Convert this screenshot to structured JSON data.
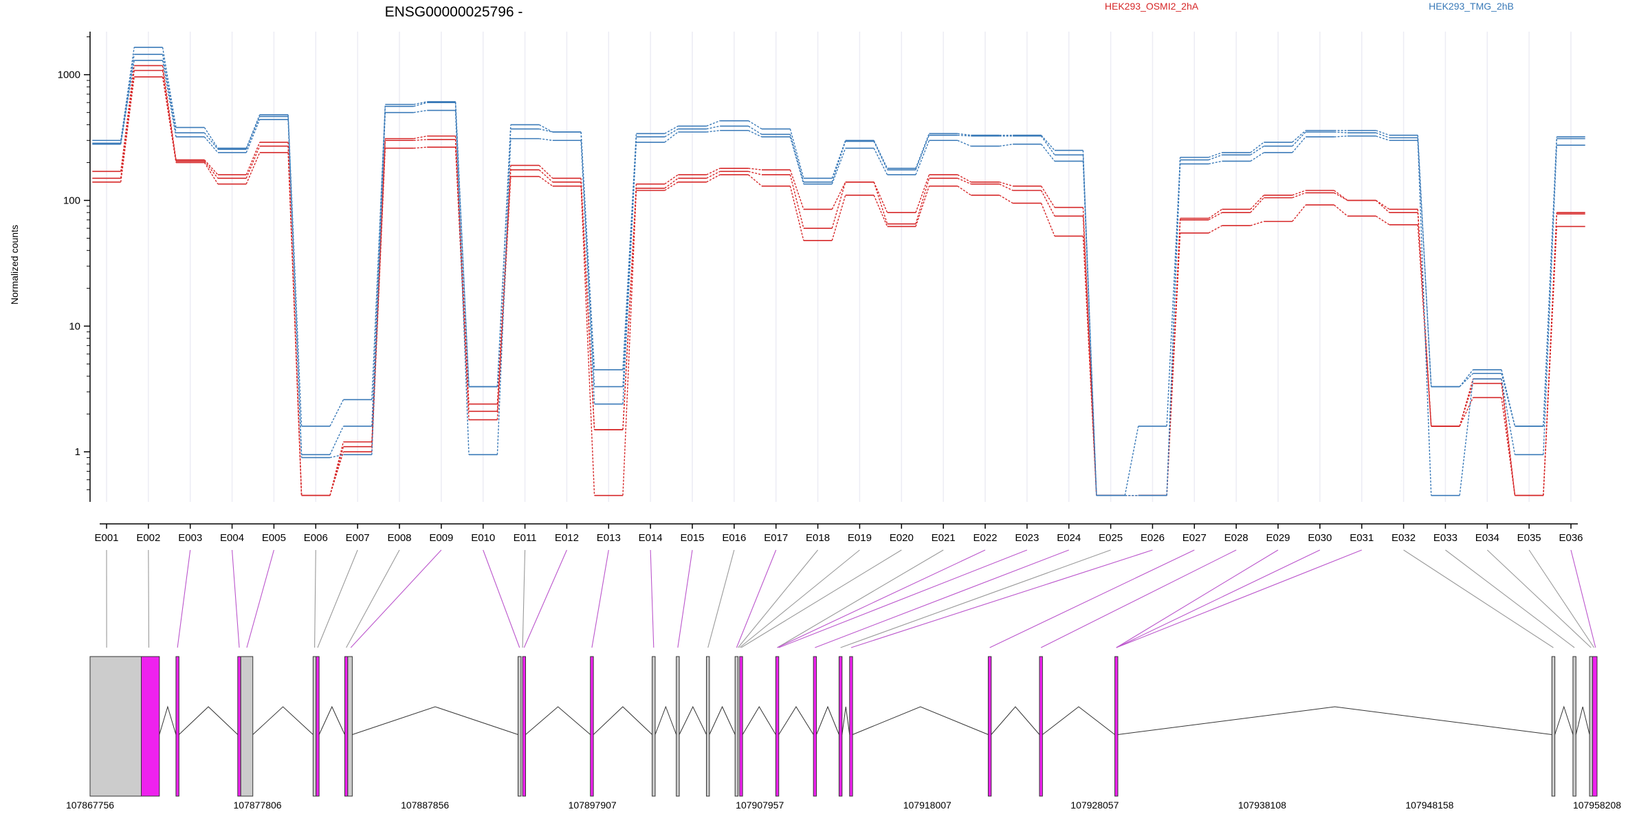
{
  "title": "ENSG00000025796 -",
  "ylabel": "Normalized counts",
  "legend": [
    {
      "name": "HEK293_OSMI2_2hA",
      "color": "#d62728"
    },
    {
      "name": "HEK293_TMG_2hB",
      "color": "#3a7ab8"
    }
  ],
  "chart_data": {
    "type": "line",
    "title": "ENSG00000025796 -",
    "ylabel": "Normalized counts",
    "yscale": "log",
    "ylim": [
      0.4,
      2200
    ],
    "yticks": [
      1,
      10,
      100,
      1000
    ],
    "ytick_labels": [
      "1",
      "10",
      "100",
      "1000"
    ],
    "categories": [
      "E001",
      "E002",
      "E003",
      "E004",
      "E005",
      "E006",
      "E007",
      "E008",
      "E009",
      "E010",
      "E011",
      "E012",
      "E013",
      "E014",
      "E015",
      "E016",
      "E017",
      "E018",
      "E019",
      "E020",
      "E021",
      "E022",
      "E023",
      "E024",
      "E025",
      "E026",
      "E027",
      "E028",
      "E029",
      "E030",
      "E031",
      "E032",
      "E033",
      "E034",
      "E035",
      "E036"
    ],
    "series": [
      {
        "name": "HEK293_OSMI2_2hA",
        "color": "#d62728",
        "values": [
          170,
          1180,
          210,
          160,
          290,
          0.45,
          1.2,
          310,
          325,
          2.4,
          190,
          150,
          1.5,
          135,
          160,
          180,
          175,
          85,
          140,
          80,
          160,
          140,
          130,
          88,
          0.45,
          0.45,
          72,
          85,
          110,
          120,
          100,
          85,
          1.6,
          3.8,
          0.45,
          80
        ]
      },
      {
        "name": "HEK293_OSMI2_2hA",
        "color": "#d62728",
        "values": [
          150,
          1080,
          205,
          150,
          270,
          0.45,
          1.1,
          300,
          305,
          2.1,
          175,
          140,
          1.5,
          125,
          150,
          170,
          160,
          60,
          140,
          65,
          150,
          135,
          120,
          75,
          0.45,
          0.45,
          70,
          80,
          105,
          115,
          100,
          80,
          1.6,
          3.5,
          0.45,
          78
        ]
      },
      {
        "name": "HEK293_OSMI2_2hA",
        "color": "#d62728",
        "values": [
          140,
          960,
          200,
          135,
          240,
          0.45,
          1.0,
          260,
          265,
          1.8,
          155,
          130,
          0.45,
          120,
          140,
          160,
          130,
          48,
          110,
          62,
          130,
          110,
          95,
          52,
          0.45,
          0.45,
          55,
          63,
          68,
          92,
          75,
          64,
          1.6,
          2.7,
          0.45,
          62
        ]
      },
      {
        "name": "HEK293_TMG_2hB",
        "color": "#3a7ab8",
        "values": [
          300,
          1650,
          380,
          260,
          480,
          1.6,
          2.6,
          580,
          610,
          3.3,
          400,
          350,
          4.5,
          340,
          390,
          430,
          370,
          150,
          300,
          180,
          340,
          330,
          330,
          250,
          0.45,
          0.45,
          220,
          240,
          290,
          360,
          360,
          330,
          3.3,
          4.5,
          1.6,
          320
        ]
      },
      {
        "name": "HEK293_TMG_2hB",
        "color": "#3a7ab8",
        "values": [
          285,
          1450,
          345,
          255,
          465,
          0.95,
          1.6,
          560,
          600,
          3.3,
          370,
          350,
          3.3,
          320,
          370,
          390,
          335,
          140,
          295,
          175,
          330,
          325,
          325,
          230,
          0.45,
          1.6,
          210,
          230,
          270,
          350,
          345,
          315,
          3.3,
          4.2,
          1.6,
          310
        ]
      },
      {
        "name": "HEK293_TMG_2hB",
        "color": "#3a7ab8",
        "values": [
          280,
          1300,
          320,
          240,
          440,
          0.9,
          0.95,
          500,
          520,
          0.95,
          310,
          300,
          2.4,
          290,
          350,
          360,
          320,
          135,
          260,
          160,
          300,
          270,
          280,
          205,
          0.45,
          0.45,
          195,
          205,
          240,
          320,
          325,
          300,
          0.45,
          3.8,
          0.95,
          275
        ]
      }
    ],
    "gene_model": {
      "genomic_ticks": [
        "107867756",
        "107877806",
        "107887856",
        "107897907",
        "107907957",
        "107918007",
        "107928057",
        "107938108",
        "107948158",
        "107958208"
      ]
    }
  }
}
